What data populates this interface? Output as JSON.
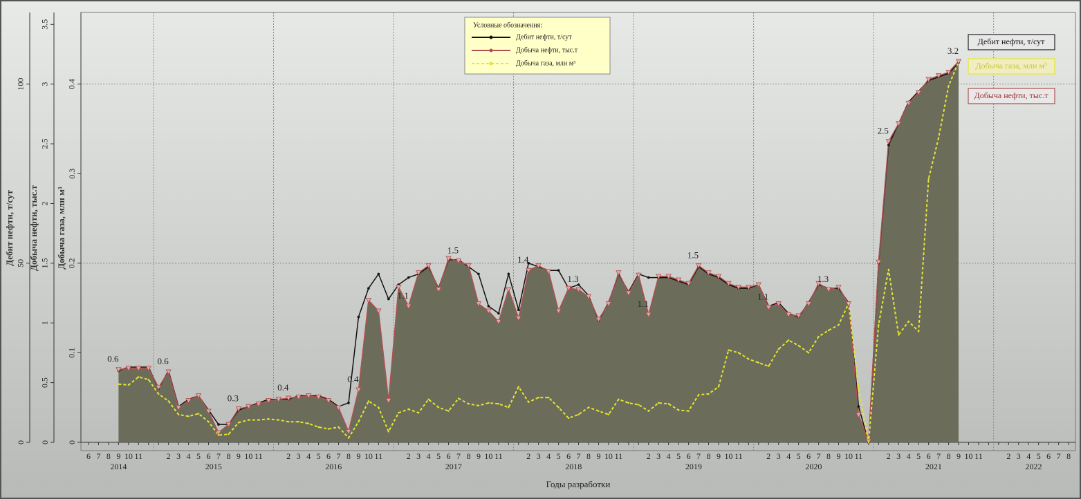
{
  "chart_data": {
    "type": "line",
    "x_label": "Годы разработки",
    "legend_title": "Условные обозначения:",
    "categories": [
      "6",
      "7",
      "8",
      "9",
      "10",
      "11",
      null,
      null,
      "2",
      "3",
      "4",
      "5",
      "6",
      "7",
      "8",
      "9",
      "10",
      "11",
      null,
      null,
      "2",
      "3",
      "4",
      "5",
      "6",
      "7",
      "8",
      "9",
      "10",
      "11",
      null,
      null,
      "2",
      "3",
      "4",
      "5",
      "6",
      "7",
      "8",
      "9",
      "10",
      "11",
      null,
      null,
      "2",
      "3",
      "4",
      "5",
      "6",
      "7",
      "8",
      "9",
      "10",
      "11",
      null,
      null,
      "2",
      "3",
      "4",
      "5",
      "6",
      "7",
      "8",
      "9",
      "10",
      "11",
      null,
      null,
      "2",
      "3",
      "4",
      "5",
      "6",
      "7",
      "8",
      "9",
      "10",
      "11",
      null,
      null,
      "2",
      "3",
      "4",
      "5",
      "6",
      "7",
      "8",
      "9",
      "10",
      "11",
      null,
      null,
      "2",
      "3",
      "4",
      "5",
      "6",
      "7",
      "8"
    ],
    "years": [
      "2014",
      null,
      null,
      null,
      null,
      null,
      null,
      "2015",
      null,
      null,
      null,
      null,
      null,
      null,
      null,
      null,
      null,
      null,
      null,
      "2016",
      null,
      null,
      null,
      null,
      null,
      null,
      null,
      null,
      null,
      null,
      null,
      "2017",
      null,
      null,
      null,
      null,
      null,
      null,
      null,
      null,
      null,
      null,
      null,
      "2018",
      null,
      null,
      null,
      null,
      null,
      null,
      null,
      null,
      null,
      null,
      null,
      "2019",
      null,
      null,
      null,
      null,
      null,
      null,
      null,
      null,
      null,
      null,
      null,
      "2020",
      null,
      null,
      null,
      null,
      null,
      null,
      null,
      null,
      null,
      null,
      null,
      "2021",
      null,
      null,
      null,
      null,
      null,
      null,
      null,
      null,
      null,
      null,
      null,
      "2022",
      null,
      null,
      null,
      null,
      null,
      null,
      null
    ],
    "ylabel": "Добыча нефти, тыс.т",
    "ylim": [
      0,
      3.6
    ],
    "yticks": [
      0,
      0.5,
      1,
      1.5,
      2,
      2.5,
      3,
      3.5
    ],
    "y2label": "Дебит нефти, т/сут",
    "y2lim": [
      0,
      120
    ],
    "y2ticks": [
      0,
      50,
      100
    ],
    "y3label": "Добыча газа, млн м³",
    "y3lim": [
      0,
      0.48
    ],
    "y3ticks": [
      0,
      0.1,
      0.2,
      0.3,
      0.4
    ],
    "grid": true,
    "series": [
      {
        "name": "Дебит нефти, т/сут",
        "color": "#111111",
        "axis": "y2",
        "values": [
          null,
          null,
          null,
          20,
          21,
          21,
          21,
          15,
          20,
          10,
          12,
          13,
          9,
          5,
          5,
          9,
          10,
          11,
          12,
          12,
          12,
          13,
          13,
          13,
          12,
          10,
          11,
          35,
          43,
          47,
          40,
          44,
          46,
          47,
          49,
          43,
          51,
          51,
          49,
          47,
          38,
          36,
          47,
          37,
          50,
          49,
          48,
          48,
          43,
          44,
          41,
          34,
          39,
          47,
          42,
          47,
          46,
          46,
          46,
          45,
          44,
          49,
          47,
          46,
          44,
          43,
          43,
          44,
          38,
          39,
          36,
          35,
          39,
          44,
          43,
          43,
          39,
          10,
          0,
          50,
          83,
          89,
          95,
          98,
          101,
          102,
          103,
          106,
          null,
          null,
          null,
          null,
          null,
          null,
          null,
          null,
          null,
          null,
          null
        ]
      },
      {
        "name": "Добыча нефти, тыс.т",
        "color": "#b05050",
        "axis": "y",
        "values": [
          null,
          null,
          null,
          0.61,
          0.62,
          0.62,
          0.62,
          0.46,
          0.59,
          0.29,
          0.35,
          0.39,
          0.26,
          0.08,
          0.15,
          0.28,
          0.3,
          0.32,
          0.35,
          0.36,
          0.37,
          0.38,
          0.39,
          0.38,
          0.35,
          0.29,
          0.09,
          0.44,
          1.19,
          1.1,
          0.35,
          1.3,
          1.14,
          1.42,
          1.48,
          1.28,
          1.54,
          1.52,
          1.48,
          1.16,
          1.1,
          1.01,
          1.28,
          1.04,
          1.44,
          1.48,
          1.43,
          1.1,
          1.29,
          1.28,
          1.22,
          1.03,
          1.16,
          1.42,
          1.25,
          1.4,
          1.07,
          1.39,
          1.39,
          1.36,
          1.33,
          1.48,
          1.42,
          1.39,
          1.33,
          1.3,
          1.3,
          1.32,
          1.13,
          1.16,
          1.07,
          1.06,
          1.16,
          1.33,
          1.28,
          1.3,
          1.16,
          0.23,
          0.01,
          1.51,
          2.52,
          2.67,
          2.84,
          2.93,
          3.04,
          3.07,
          3.1,
          3.19,
          null,
          null,
          null,
          null,
          null,
          null,
          null,
          null,
          null,
          null,
          null
        ],
        "value_labels": [
          null,
          null,
          null,
          "0.6",
          null,
          null,
          null,
          null,
          "0.6",
          null,
          null,
          null,
          null,
          null,
          null,
          "0.3",
          null,
          null,
          null,
          null,
          "0.4",
          null,
          null,
          null,
          null,
          null,
          null,
          "0.4",
          null,
          null,
          null,
          null,
          "1.1",
          null,
          null,
          null,
          null,
          "1.5",
          null,
          null,
          null,
          null,
          null,
          null,
          "1.4",
          null,
          null,
          null,
          null,
          "1.3",
          null,
          null,
          null,
          null,
          null,
          null,
          "1.1",
          null,
          null,
          null,
          null,
          "1.5",
          null,
          null,
          null,
          null,
          null,
          null,
          "1.1",
          null,
          null,
          null,
          null,
          null,
          "1.3",
          null,
          null,
          null,
          null,
          null,
          "2.5",
          null,
          null,
          null,
          null,
          null,
          null,
          "3.2",
          null,
          null,
          null,
          null,
          null,
          null,
          null,
          null,
          null,
          null,
          null
        ]
      },
      {
        "name": "Добыча газа, млн м³",
        "color": "#e6e632",
        "axis": "y3",
        "values": [
          null,
          null,
          null,
          0.065,
          0.064,
          0.073,
          0.07,
          0.054,
          0.046,
          0.031,
          0.029,
          0.032,
          0.023,
          0.008,
          0.009,
          0.022,
          0.025,
          0.025,
          0.026,
          0.025,
          0.023,
          0.023,
          0.021,
          0.017,
          0.015,
          0.017,
          0.005,
          0.023,
          0.046,
          0.039,
          0.012,
          0.033,
          0.037,
          0.033,
          0.048,
          0.039,
          0.035,
          0.049,
          0.043,
          0.041,
          0.044,
          0.043,
          0.039,
          0.062,
          0.045,
          0.05,
          0.05,
          0.039,
          0.027,
          0.031,
          0.039,
          0.035,
          0.031,
          0.048,
          0.044,
          0.042,
          0.035,
          0.044,
          0.043,
          0.036,
          0.035,
          0.053,
          0.054,
          0.062,
          0.103,
          0.1,
          0.093,
          0.089,
          0.085,
          0.104,
          0.114,
          0.108,
          0.1,
          0.118,
          0.125,
          0.131,
          0.155,
          0.06,
          0,
          0.131,
          0.193,
          0.12,
          0.135,
          0.124,
          0.294,
          0.34,
          0.398,
          0.425,
          null,
          null,
          null,
          null,
          null,
          null,
          null,
          null,
          null,
          null,
          null
        ]
      }
    ]
  }
}
